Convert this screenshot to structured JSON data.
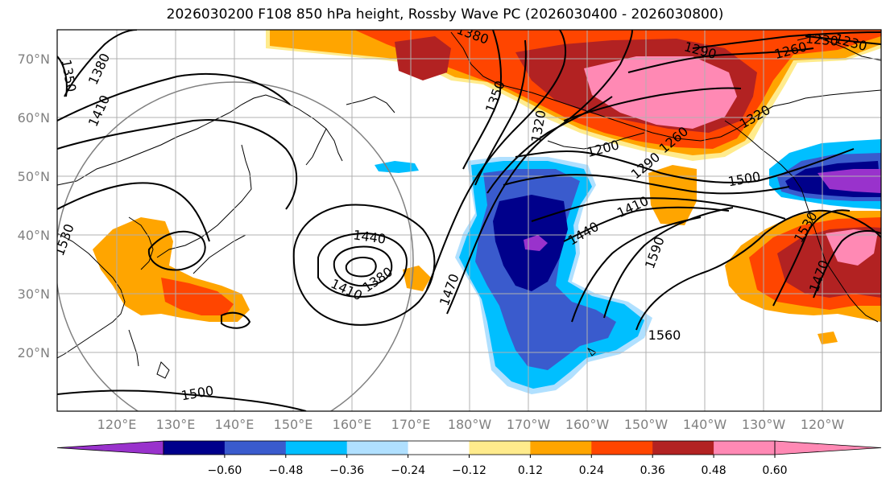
{
  "title": "2026030200 F108 850 hPa height, Rossby Wave PC (2026030400 - 2026030800)",
  "lat_labels": [
    "70°N",
    "60°N",
    "50°N",
    "40°N",
    "30°N",
    "20°N"
  ],
  "lon_labels": [
    "120°E",
    "130°E",
    "140°E",
    "150°E",
    "160°E",
    "170°E",
    "180°W",
    "170°W",
    "160°W",
    "150°W",
    "140°W",
    "130°W",
    "120°W"
  ],
  "colorbar": {
    "colors": [
      "#9932cc",
      "#00008b",
      "#3a5bcd",
      "#00bfff",
      "#b0e0ff",
      "#ffffff",
      "#ffeb8c",
      "#ffa500",
      "#ff4500",
      "#b22222",
      "#ff89b4",
      "#ff89b4"
    ],
    "tick_labels": [
      "−0.60",
      "−0.48",
      "−0.36",
      "−0.24",
      "−0.12",
      "0.12",
      "0.24",
      "0.36",
      "0.48",
      "0.60"
    ]
  },
  "contour_labels": [
    "1350",
    "1380",
    "1410",
    "1530",
    "1500",
    "1440",
    "1410",
    "1380",
    "1470",
    "1380",
    "1350",
    "1320",
    "1290",
    "1260",
    "1230",
    "1290",
    "1260",
    "1200",
    "1320",
    "1230",
    "1440",
    "1410",
    "1500",
    "1590",
    "1560",
    "1530",
    "1470"
  ]
}
